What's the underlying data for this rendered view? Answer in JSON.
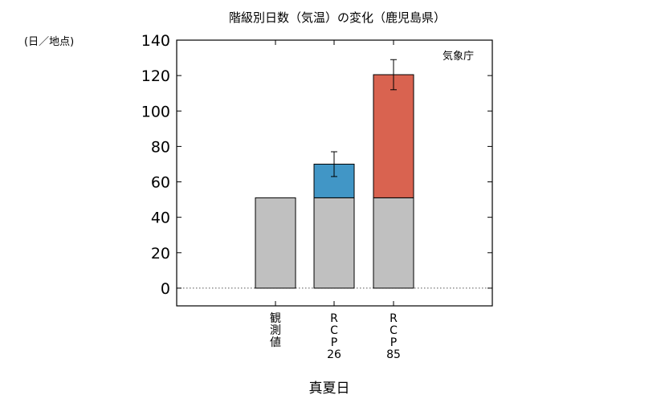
{
  "chart_data": {
    "type": "bar",
    "title": "階級別日数（気温）の変化（鹿児島県）",
    "ylabel": "(日／地点)",
    "xlabel": "真夏日",
    "source": "気象庁",
    "ylim": [
      -10,
      140
    ],
    "yticks": [
      0,
      20,
      40,
      60,
      80,
      100,
      120,
      140
    ],
    "grid": false,
    "categories": [
      "観測値",
      "RCP26",
      "RCP85"
    ],
    "category_lines": [
      [
        "観",
        "測",
        "値"
      ],
      [
        "R",
        "C",
        "P",
        "26"
      ],
      [
        "R",
        "C",
        "P",
        "85"
      ]
    ],
    "series": [
      {
        "name": "",
        "role": "base",
        "color": "#c0c0c0",
        "values": [
          51,
          51,
          51
        ]
      },
      {
        "name": "",
        "role": "increase",
        "colors": [
          null,
          "#4196c6",
          "#d96350"
        ],
        "values": [
          0,
          19,
          69.5
        ]
      }
    ],
    "totals": [
      51,
      70,
      120.5
    ],
    "error_bars": [
      null,
      [
        63,
        77
      ],
      [
        112,
        129
      ]
    ],
    "zero_line": "dotted"
  }
}
